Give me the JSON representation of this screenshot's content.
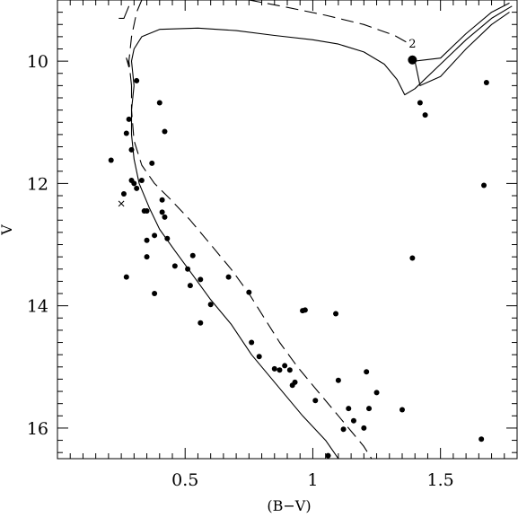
{
  "chart_data": {
    "type": "scatter",
    "title": "",
    "xlabel": "(B−V)",
    "ylabel": "V",
    "xlim": [
      0.0,
      1.8
    ],
    "ylim": [
      9.0,
      16.5
    ],
    "y_inverted": true,
    "grid": false,
    "x_ticks": [
      0.5,
      1.0,
      1.5
    ],
    "x_tick_labels": [
      "0.5",
      "1",
      "1.5"
    ],
    "y_ticks": [
      10,
      12,
      14,
      16
    ],
    "y_tick_labels": [
      "10",
      "12",
      "14",
      "16"
    ],
    "points": [
      [
        0.21,
        11.62
      ],
      [
        0.26,
        12.17
      ],
      [
        0.27,
        11.18
      ],
      [
        0.28,
        10.95
      ],
      [
        0.29,
        11.45
      ],
      [
        0.31,
        10.32
      ],
      [
        0.29,
        11.95
      ],
      [
        0.3,
        12.0
      ],
      [
        0.31,
        12.08
      ],
      [
        0.33,
        11.95
      ],
      [
        0.34,
        12.45
      ],
      [
        0.35,
        12.45
      ],
      [
        0.37,
        11.67
      ],
      [
        0.4,
        10.68
      ],
      [
        0.42,
        11.15
      ],
      [
        0.41,
        12.27
      ],
      [
        0.41,
        12.47
      ],
      [
        0.42,
        12.55
      ],
      [
        0.43,
        12.9
      ],
      [
        0.35,
        12.93
      ],
      [
        0.38,
        12.85
      ],
      [
        0.35,
        13.2
      ],
      [
        0.27,
        13.53
      ],
      [
        0.38,
        13.8
      ],
      [
        0.46,
        13.35
      ],
      [
        0.51,
        13.4
      ],
      [
        0.53,
        13.18
      ],
      [
        0.52,
        13.67
      ],
      [
        0.56,
        13.57
      ],
      [
        0.6,
        13.98
      ],
      [
        0.56,
        14.28
      ],
      [
        0.67,
        13.53
      ],
      [
        0.75,
        13.78
      ],
      [
        0.76,
        14.6
      ],
      [
        0.79,
        14.83
      ],
      [
        0.85,
        15.03
      ],
      [
        0.87,
        15.05
      ],
      [
        0.89,
        14.98
      ],
      [
        0.91,
        15.05
      ],
      [
        0.92,
        15.3
      ],
      [
        0.93,
        15.25
      ],
      [
        0.96,
        14.08
      ],
      [
        0.97,
        14.07
      ],
      [
        1.01,
        15.55
      ],
      [
        1.06,
        16.45
      ],
      [
        1.09,
        14.13
      ],
      [
        1.1,
        15.22
      ],
      [
        1.12,
        16.02
      ],
      [
        1.14,
        15.68
      ],
      [
        1.16,
        15.88
      ],
      [
        1.2,
        16.0
      ],
      [
        1.21,
        15.08
      ],
      [
        1.22,
        15.68
      ],
      [
        1.25,
        15.42
      ],
      [
        1.35,
        15.7
      ],
      [
        1.39,
        13.22
      ],
      [
        1.42,
        10.68
      ],
      [
        1.44,
        10.88
      ],
      [
        1.66,
        16.18
      ],
      [
        1.67,
        12.03
      ],
      [
        1.68,
        10.35
      ]
    ],
    "special_points": [
      {
        "marker": "large-dot",
        "x": 1.39,
        "y": 9.98
      },
      {
        "marker": "cross",
        "x": 0.25,
        "y": 12.33
      }
    ],
    "annotations": [
      {
        "text": "2",
        "x": 1.39,
        "y": 9.78
      }
    ],
    "curves": [
      {
        "style": "solid",
        "points": [
          [
            0.3,
            10.4
          ],
          [
            0.29,
            10.8
          ],
          [
            0.29,
            11.2
          ],
          [
            0.3,
            11.6
          ],
          [
            0.32,
            12.0
          ],
          [
            0.36,
            12.4
          ],
          [
            0.4,
            12.75
          ],
          [
            0.46,
            13.1
          ],
          [
            0.53,
            13.5
          ],
          [
            0.6,
            13.9
          ],
          [
            0.68,
            14.3
          ],
          [
            0.76,
            14.8
          ],
          [
            0.86,
            15.3
          ],
          [
            0.96,
            15.8
          ],
          [
            1.05,
            16.2
          ],
          [
            1.1,
            16.5
          ]
        ]
      },
      {
        "style": "solid",
        "points": [
          [
            0.3,
            10.4
          ],
          [
            0.29,
            10.0
          ],
          [
            0.3,
            9.8
          ],
          [
            0.33,
            9.6
          ],
          [
            0.4,
            9.48
          ],
          [
            0.55,
            9.46
          ],
          [
            0.7,
            9.5
          ],
          [
            0.85,
            9.58
          ],
          [
            1.0,
            9.65
          ],
          [
            1.1,
            9.72
          ],
          [
            1.2,
            9.85
          ],
          [
            1.28,
            10.05
          ],
          [
            1.33,
            10.3
          ],
          [
            1.36,
            10.55
          ],
          [
            1.4,
            10.45
          ],
          [
            1.5,
            10.05
          ],
          [
            1.6,
            9.65
          ],
          [
            1.7,
            9.3
          ],
          [
            1.78,
            9.1
          ]
        ]
      },
      {
        "style": "solid",
        "points": [
          [
            1.4,
            10.0
          ],
          [
            1.42,
            10.4
          ],
          [
            1.5,
            10.25
          ],
          [
            1.6,
            9.8
          ],
          [
            1.7,
            9.4
          ],
          [
            1.77,
            9.2
          ]
        ]
      },
      {
        "style": "solid",
        "points": [
          [
            1.4,
            10.0
          ],
          [
            1.5,
            9.95
          ],
          [
            1.6,
            9.55
          ],
          [
            1.7,
            9.2
          ],
          [
            1.77,
            9.05
          ]
        ]
      },
      {
        "style": "solid",
        "points": [
          [
            0.28,
            10.1
          ],
          [
            0.27,
            9.95
          ],
          [
            0.28,
            10.05
          ]
        ]
      },
      {
        "style": "solid",
        "points": [
          [
            0.24,
            9.3
          ],
          [
            0.26,
            9.3
          ],
          [
            0.28,
            9.1
          ]
        ]
      },
      {
        "style": "dashed",
        "points": [
          [
            0.29,
            10.4
          ],
          [
            0.28,
            10.0
          ],
          [
            0.29,
            9.6
          ],
          [
            0.31,
            9.2
          ],
          [
            0.33,
            9.0
          ]
        ]
      },
      {
        "style": "dashed",
        "points": [
          [
            0.29,
            10.4
          ],
          [
            0.29,
            10.8
          ],
          [
            0.3,
            11.3
          ],
          [
            0.33,
            11.7
          ],
          [
            0.38,
            12.0
          ],
          [
            0.44,
            12.25
          ],
          [
            0.52,
            12.6
          ],
          [
            0.6,
            13.0
          ],
          [
            0.68,
            13.4
          ],
          [
            0.75,
            13.8
          ],
          [
            0.81,
            14.2
          ],
          [
            0.87,
            14.6
          ],
          [
            0.94,
            15.0
          ],
          [
            1.02,
            15.4
          ],
          [
            1.1,
            15.8
          ],
          [
            1.2,
            16.3
          ],
          [
            1.23,
            16.5
          ]
        ]
      },
      {
        "style": "dashed",
        "points": [
          [
            0.75,
            9.0
          ],
          [
            0.9,
            9.12
          ],
          [
            1.05,
            9.25
          ],
          [
            1.2,
            9.4
          ],
          [
            1.32,
            9.58
          ],
          [
            1.38,
            9.72
          ]
        ]
      }
    ]
  }
}
